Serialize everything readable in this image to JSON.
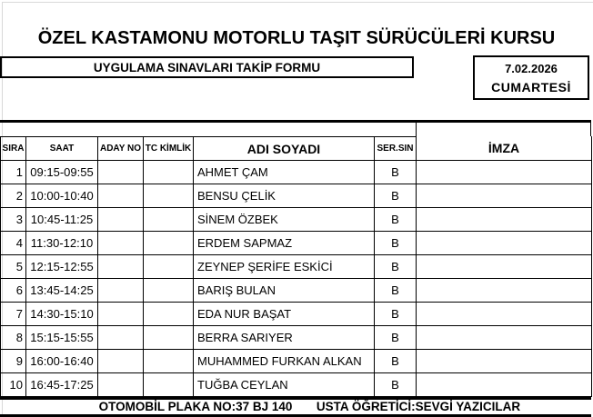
{
  "title": "ÖZEL KASTAMONU MOTORLU TAŞIT SÜRÜCÜLERİ KURSU",
  "subtitle": "UYGULAMA SINAVLARI TAKİP FORMU",
  "date": {
    "value": "7.02.2026",
    "day": "CUMARTESİ"
  },
  "table": {
    "headers": {
      "sira": "SIRA",
      "saat": "SAAT",
      "aday_no": "ADAY NO",
      "tc_kimlik": "TC KİMLİK",
      "adi_soyadi": "ADI SOYADI",
      "ser_sin": "SER.SIN",
      "imza": "İMZA"
    },
    "rows": [
      {
        "sira": "1",
        "saat": "09:15-09:55",
        "aday_no": "",
        "tc_kimlik": "",
        "adi_soyadi": "AHMET ÇAM",
        "ser_sin": "B",
        "imza": ""
      },
      {
        "sira": "2",
        "saat": "10:00-10:40",
        "aday_no": "",
        "tc_kimlik": "",
        "adi_soyadi": "BENSU ÇELİK",
        "ser_sin": "B",
        "imza": ""
      },
      {
        "sira": "3",
        "saat": "10:45-11:25",
        "aday_no": "",
        "tc_kimlik": "",
        "adi_soyadi": "SİNEM ÖZBEK",
        "ser_sin": "B",
        "imza": ""
      },
      {
        "sira": "4",
        "saat": "11:30-12:10",
        "aday_no": "",
        "tc_kimlik": "",
        "adi_soyadi": "ERDEM SAPMAZ",
        "ser_sin": "B",
        "imza": ""
      },
      {
        "sira": "5",
        "saat": "12:15-12:55",
        "aday_no": "",
        "tc_kimlik": "",
        "adi_soyadi": "ZEYNEP ŞERİFE ESKİCİ",
        "ser_sin": "B",
        "imza": ""
      },
      {
        "sira": "6",
        "saat": "13:45-14:25",
        "aday_no": "",
        "tc_kimlik": "",
        "adi_soyadi": "BARIŞ BULAN",
        "ser_sin": "B",
        "imza": ""
      },
      {
        "sira": "7",
        "saat": "14:30-15:10",
        "aday_no": "",
        "tc_kimlik": "",
        "adi_soyadi": "EDA NUR BAŞAT",
        "ser_sin": "B",
        "imza": ""
      },
      {
        "sira": "8",
        "saat": "15:15-15:55",
        "aday_no": "",
        "tc_kimlik": "",
        "adi_soyadi": "BERRA SARIYER",
        "ser_sin": "B",
        "imza": ""
      },
      {
        "sira": "9",
        "saat": "16:00-16:40",
        "aday_no": "",
        "tc_kimlik": "",
        "adi_soyadi": "MUHAMMED FURKAN ALKAN",
        "ser_sin": "B",
        "imza": ""
      },
      {
        "sira": "10",
        "saat": "16:45-17:25",
        "aday_no": "",
        "tc_kimlik": "",
        "adi_soyadi": "TUĞBA CEYLAN",
        "ser_sin": "B",
        "imza": ""
      }
    ]
  },
  "footer": {
    "plate": "OTOMOBİL PLAKA NO:37 BJ 140",
    "instructor": "USTA ÖĞRETİCİ:SEVGİ YAZICILAR"
  },
  "colors": {
    "border": "#000000",
    "text": "#000000",
    "background": "#ffffff",
    "page_edge": "#d9d9d9"
  }
}
